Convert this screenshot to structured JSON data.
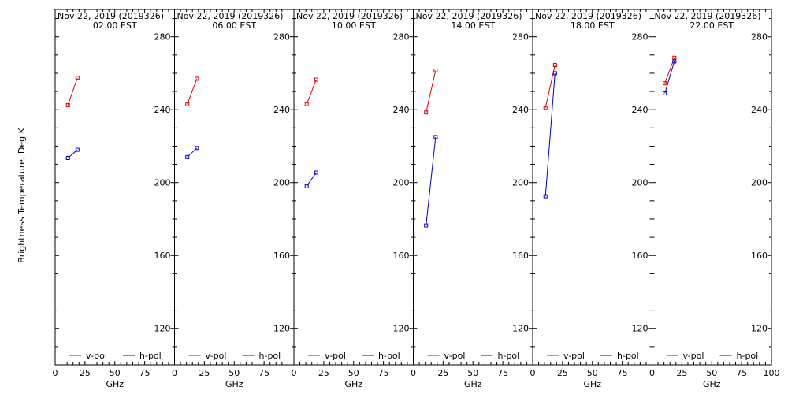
{
  "chart_data": {
    "type": "line",
    "ylabel": "Brightness Temperature, Deg K",
    "ylim": [
      100,
      295
    ],
    "yticks": [
      120,
      160,
      200,
      240,
      280
    ],
    "xlim": [
      0,
      100
    ],
    "xticks": [
      "0",
      "25",
      "50",
      "75",
      "100"
    ],
    "xlabel": "GHz",
    "legend_position": "bottom",
    "colors": {
      "v-pol": "#e00000",
      "h-pol": "#0000d0"
    },
    "panels": [
      {
        "title": "Nov 22, 2019 (2019326)",
        "subtitle": "02.00 EST",
        "series": [
          {
            "name": "v-pol",
            "x": [
              10.7,
              18.7
            ],
            "y": [
              242.5,
              257.5
            ]
          },
          {
            "name": "h-pol",
            "x": [
              10.7,
              18.7
            ],
            "y": [
              213.5,
              218.0
            ]
          }
        ]
      },
      {
        "title": "Nov 22, 2019 (2019326)",
        "subtitle": "06.00 EST",
        "series": [
          {
            "name": "v-pol",
            "x": [
              10.7,
              18.7
            ],
            "y": [
              243.0,
              257.0
            ]
          },
          {
            "name": "h-pol",
            "x": [
              10.7,
              18.7
            ],
            "y": [
              214.0,
              219.0
            ]
          }
        ]
      },
      {
        "title": "Nov 22, 2019 (2019326)",
        "subtitle": "10.00 EST",
        "series": [
          {
            "name": "v-pol",
            "x": [
              10.7,
              18.7
            ],
            "y": [
              243.0,
              256.5
            ]
          },
          {
            "name": "h-pol",
            "x": [
              10.7,
              18.7
            ],
            "y": [
              198.0,
              205.5
            ]
          }
        ]
      },
      {
        "title": "Nov 22, 2019 (2019326)",
        "subtitle": "14.00 EST",
        "series": [
          {
            "name": "v-pol",
            "x": [
              10.7,
              18.7
            ],
            "y": [
              238.5,
              261.5
            ]
          },
          {
            "name": "h-pol",
            "x": [
              10.7,
              18.7
            ],
            "y": [
              176.5,
              225.0
            ]
          }
        ]
      },
      {
        "title": "Nov 22, 2019 (2019326)",
        "subtitle": "18.00 EST",
        "series": [
          {
            "name": "v-pol",
            "x": [
              10.7,
              18.7
            ],
            "y": [
              241.0,
              264.5
            ]
          },
          {
            "name": "h-pol",
            "x": [
              10.7,
              18.7
            ],
            "y": [
              192.5,
              260.0
            ]
          }
        ]
      },
      {
        "title": "Nov 22, 2019 (2019326)",
        "subtitle": "22.00 EST",
        "series": [
          {
            "name": "v-pol",
            "x": [
              10.7,
              18.7
            ],
            "y": [
              254.5,
              268.5
            ]
          },
          {
            "name": "h-pol",
            "x": [
              10.7,
              18.7
            ],
            "y": [
              249.0,
              266.5
            ]
          }
        ]
      }
    ]
  }
}
